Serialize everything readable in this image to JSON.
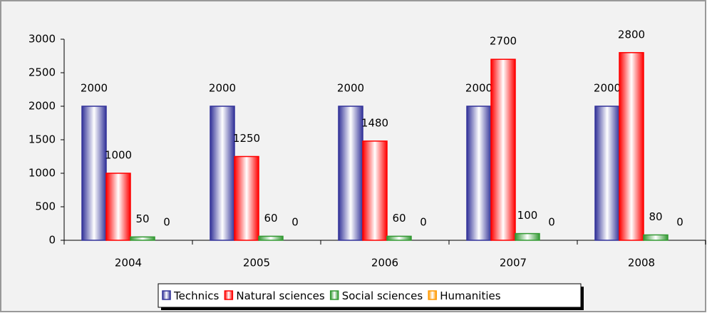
{
  "chart_data": {
    "type": "bar",
    "categories": [
      "2004",
      "2005",
      "2006",
      "2007",
      "2008"
    ],
    "series": [
      {
        "name": "Technics",
        "color": "#333399",
        "values": [
          2000,
          2000,
          2000,
          2000,
          2000
        ]
      },
      {
        "name": "Natural sciences",
        "color": "#ff0000",
        "values": [
          1000,
          1250,
          1480,
          2700,
          2800
        ]
      },
      {
        "name": "Social sciences",
        "color": "#339933",
        "values": [
          50,
          60,
          60,
          100,
          80
        ]
      },
      {
        "name": "Humanities",
        "color": "#ff9900",
        "values": [
          0,
          0,
          0,
          0,
          0
        ]
      }
    ],
    "ylim": [
      0,
      3000
    ],
    "yticks": [
      0,
      500,
      1000,
      1500,
      2000,
      2500,
      3000
    ],
    "legend": "bottom"
  }
}
